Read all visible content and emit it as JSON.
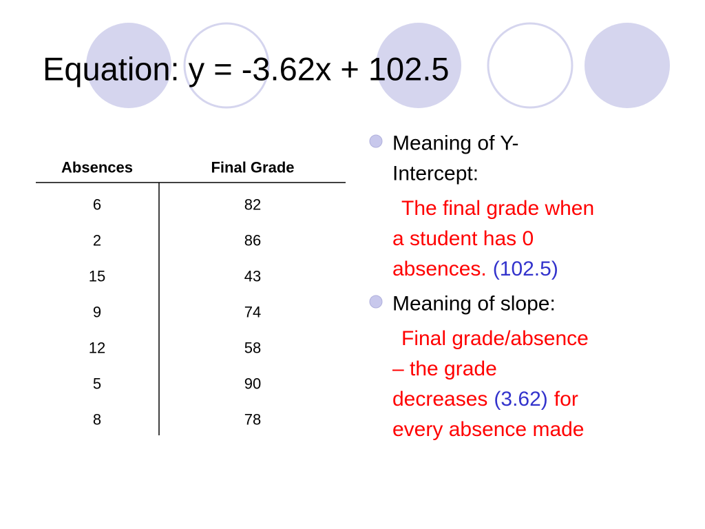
{
  "title": "Equation:  y = -3.62x + 102.5",
  "table": {
    "headers": [
      "Absences",
      "Final Grade"
    ],
    "rows": [
      [
        "6",
        "82"
      ],
      [
        "2",
        "86"
      ],
      [
        "15",
        "43"
      ],
      [
        "9",
        "74"
      ],
      [
        "12",
        "58"
      ],
      [
        "5",
        "90"
      ],
      [
        "8",
        "78"
      ]
    ]
  },
  "bullets": [
    {
      "heading": [
        "Meaning of Y-",
        "Intercept:"
      ],
      "detail": [
        [
          {
            "text": "The final grade when",
            "color": "#ff0000"
          }
        ],
        [
          {
            "text": "a student has 0",
            "color": "#ff0000"
          }
        ],
        [
          {
            "text": "absences.",
            "color": "#ff0000"
          },
          {
            "text": "(102.5)",
            "color": "#3333cc"
          }
        ]
      ]
    },
    {
      "heading": [
        "Meaning of slope:"
      ],
      "detail": [
        [
          {
            "text": "Final grade/absence",
            "color": "#ff0000"
          }
        ],
        [
          {
            "text": "– the grade",
            "color": "#ff0000"
          }
        ],
        [
          {
            "text": "decreases",
            "color": "#ff0000"
          },
          {
            "text": "(3.62)",
            "color": "#3333cc"
          },
          {
            "text": "for",
            "color": "#ff0000"
          }
        ],
        [
          {
            "text": "every absence made",
            "color": "#ff0000"
          }
        ]
      ]
    }
  ]
}
